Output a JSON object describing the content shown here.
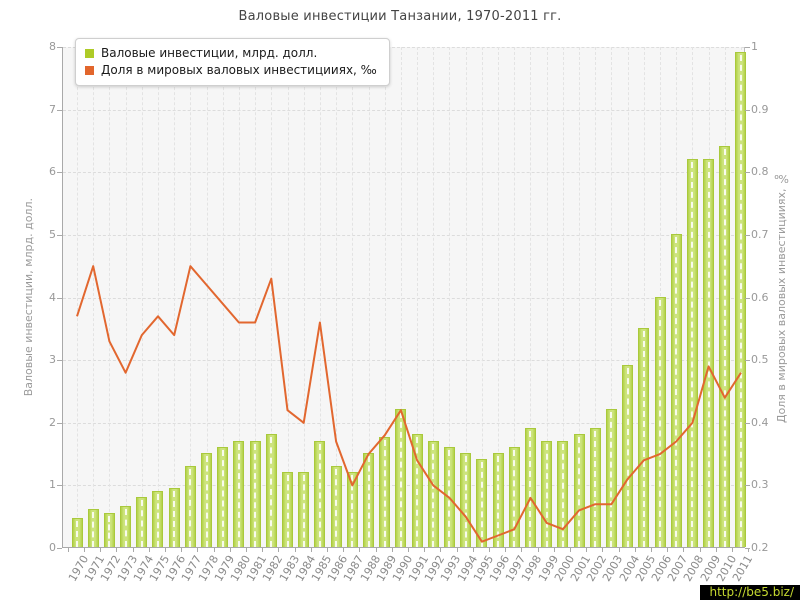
{
  "title": "Валовые инвестиции Танзании, 1970-2011 гг.",
  "legend": {
    "items": [
      {
        "label": "Валовые инвестиции, млрд. долл.",
        "color": "#aecb27"
      },
      {
        "label": "Доля в мировых валовых инвестицииях, ‰",
        "color": "#e2662c"
      }
    ]
  },
  "watermark": {
    "text": "http://be5.biz/",
    "bg": "#000000",
    "color": "#c6d930"
  },
  "chart_data": {
    "type": "bar",
    "title": "Валовые инвестиции Танзании, 1970-2011 гг.",
    "grid": true,
    "legend_position": "top-left",
    "plot_bg": "#f6f6f6",
    "categories": [
      "1970",
      "1971",
      "1972",
      "1973",
      "1974",
      "1975",
      "1976",
      "1977",
      "1978",
      "1979",
      "1980",
      "1981",
      "1982",
      "1983",
      "1984",
      "1985",
      "1986",
      "1987",
      "1988",
      "1989",
      "1990",
      "1991",
      "1992",
      "1993",
      "1994",
      "1995",
      "1996",
      "1997",
      "1998",
      "1999",
      "2000",
      "2001",
      "2002",
      "2003",
      "2004",
      "2005",
      "2006",
      "2007",
      "2008",
      "2009",
      "2010",
      "2011"
    ],
    "series": [
      {
        "name": "Валовые инвестиции, млрд. долл.",
        "type": "bar",
        "axis": "left",
        "color": "#b4d335",
        "values": [
          0.47,
          0.6,
          0.55,
          0.65,
          0.8,
          0.9,
          0.95,
          1.3,
          1.5,
          1.6,
          1.7,
          1.7,
          1.8,
          1.2,
          1.2,
          1.7,
          1.3,
          1.2,
          1.5,
          1.75,
          2.2,
          1.8,
          1.7,
          1.6,
          1.5,
          1.4,
          1.5,
          1.6,
          1.9,
          1.7,
          1.7,
          1.8,
          1.9,
          2.2,
          2.9,
          3.5,
          4.0,
          5.0,
          6.2,
          6.2,
          6.4,
          7.9
        ]
      },
      {
        "name": "Доля в мировых валовых инвестицииях, ‰",
        "type": "line",
        "axis": "right",
        "color": "#e2672f",
        "values": [
          0.57,
          0.65,
          0.53,
          0.48,
          0.54,
          0.57,
          0.54,
          0.65,
          0.62,
          0.59,
          0.56,
          0.56,
          0.63,
          0.42,
          0.4,
          0.56,
          0.37,
          0.3,
          0.35,
          0.38,
          0.42,
          0.34,
          0.3,
          0.28,
          0.25,
          0.21,
          0.22,
          0.23,
          0.28,
          0.24,
          0.23,
          0.26,
          0.27,
          0.27,
          0.31,
          0.34,
          0.35,
          0.37,
          0.4,
          0.49,
          0.44,
          0.48
        ]
      }
    ],
    "left_axis": {
      "label": "Валовые инвестиции, млрд. долл.",
      "min": 0,
      "max": 8,
      "ticks": [
        0,
        1,
        2,
        3,
        4,
        5,
        6,
        7,
        8
      ],
      "tick_labels": [
        "0",
        "1",
        "2",
        "3",
        "4",
        "5",
        "6",
        "7",
        "8"
      ]
    },
    "right_axis": {
      "label": "Доля в мировых валовых инвестицииях, ‰",
      "min": 0.2,
      "max": 1,
      "ticks": [
        0.2,
        0.3,
        0.4,
        0.5,
        0.6,
        0.7,
        0.8,
        0.9,
        1
      ],
      "tick_labels": [
        "0.2",
        "0.3",
        "0.4",
        "0.5",
        "0.6",
        "0.7",
        "0.8",
        "0.9",
        "1"
      ]
    }
  }
}
